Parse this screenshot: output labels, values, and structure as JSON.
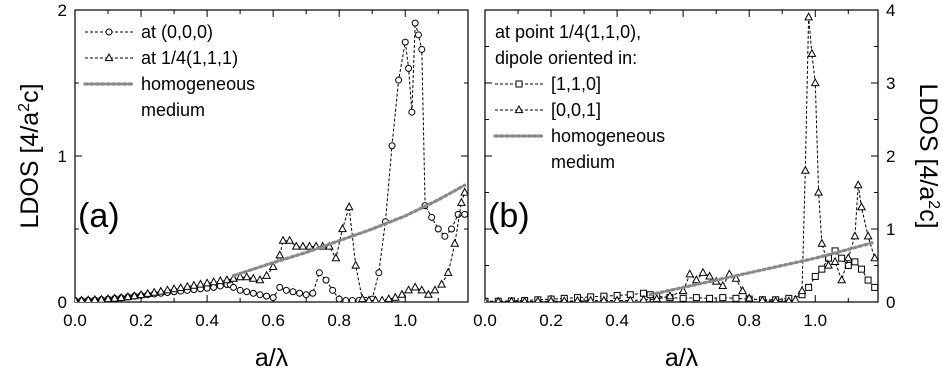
{
  "chart_data": [
    {
      "type": "line",
      "panel_label": "(a)",
      "xlabel": "a/λ",
      "ylabel_main": "LDOS [4/a",
      "ylabel_sup": "2",
      "ylabel_tail": "c]",
      "xlim": [
        0.0,
        1.19
      ],
      "ylim": [
        0,
        2
      ],
      "xticks": [
        "0.0",
        "0.2",
        "0.4",
        "0.6",
        "0.8",
        "1.0"
      ],
      "yticks": [
        "0",
        "1",
        "2"
      ],
      "y_axis_side": "left",
      "grid": false,
      "legend_position": "top-left",
      "legend_header": [],
      "series": [
        {
          "name": "at (0,0,0)",
          "marker": "circle",
          "style": "dashed",
          "color": "#000000",
          "x": [
            0.0,
            0.02,
            0.04,
            0.06,
            0.08,
            0.1,
            0.12,
            0.14,
            0.16,
            0.18,
            0.2,
            0.22,
            0.24,
            0.26,
            0.28,
            0.3,
            0.32,
            0.34,
            0.36,
            0.38,
            0.4,
            0.42,
            0.44,
            0.46,
            0.47,
            0.48,
            0.5,
            0.52,
            0.54,
            0.56,
            0.58,
            0.6,
            0.62,
            0.64,
            0.66,
            0.68,
            0.7,
            0.72,
            0.74,
            0.76,
            0.78,
            0.8,
            0.82,
            0.84,
            0.86,
            0.88,
            0.9,
            0.92,
            0.94,
            0.96,
            0.98,
            1.0,
            1.01,
            1.02,
            1.03,
            1.04,
            1.05,
            1.06,
            1.08,
            1.1,
            1.12,
            1.14,
            1.16,
            1.18
          ],
          "y": [
            0.01,
            0.01,
            0.012,
            0.014,
            0.016,
            0.02,
            0.024,
            0.028,
            0.034,
            0.04,
            0.045,
            0.05,
            0.055,
            0.06,
            0.065,
            0.07,
            0.075,
            0.08,
            0.085,
            0.09,
            0.095,
            0.1,
            0.11,
            0.12,
            0.12,
            0.1,
            0.08,
            0.07,
            0.06,
            0.05,
            0.04,
            0.03,
            0.1,
            0.08,
            0.07,
            0.06,
            0.05,
            0.06,
            0.2,
            0.15,
            0.08,
            0.02,
            0.01,
            0.01,
            0.01,
            0.01,
            0.02,
            0.2,
            0.55,
            1.07,
            1.52,
            1.78,
            1.6,
            1.3,
            1.91,
            1.83,
            1.73,
            0.66,
            0.58,
            0.5,
            0.45,
            0.5,
            0.6,
            0.6
          ]
        },
        {
          "name": "at 1/4(1,1,1)",
          "marker": "triangle",
          "style": "dashed",
          "color": "#000000",
          "x": [
            0.0,
            0.02,
            0.04,
            0.06,
            0.08,
            0.1,
            0.12,
            0.14,
            0.16,
            0.18,
            0.2,
            0.22,
            0.24,
            0.26,
            0.28,
            0.3,
            0.32,
            0.34,
            0.36,
            0.38,
            0.4,
            0.42,
            0.44,
            0.46,
            0.48,
            0.5,
            0.52,
            0.54,
            0.56,
            0.58,
            0.6,
            0.62,
            0.63,
            0.65,
            0.67,
            0.69,
            0.71,
            0.73,
            0.75,
            0.77,
            0.79,
            0.81,
            0.83,
            0.85,
            0.87,
            0.89,
            0.91,
            0.93,
            0.95,
            0.97,
            0.99,
            1.01,
            1.03,
            1.05,
            1.07,
            1.09,
            1.11,
            1.13,
            1.15,
            1.17,
            1.18
          ],
          "y": [
            0.01,
            0.01,
            0.012,
            0.014,
            0.016,
            0.02,
            0.024,
            0.028,
            0.034,
            0.04,
            0.048,
            0.056,
            0.064,
            0.072,
            0.08,
            0.088,
            0.096,
            0.104,
            0.112,
            0.12,
            0.128,
            0.136,
            0.144,
            0.15,
            0.16,
            0.17,
            0.17,
            0.16,
            0.15,
            0.18,
            0.24,
            0.32,
            0.42,
            0.42,
            0.38,
            0.38,
            0.38,
            0.38,
            0.38,
            0.38,
            0.3,
            0.5,
            0.65,
            0.25,
            0.02,
            0.01,
            0.01,
            0.01,
            0.02,
            0.03,
            0.05,
            0.08,
            0.1,
            0.08,
            0.05,
            0.08,
            0.12,
            0.2,
            0.4,
            0.68,
            0.75
          ]
        },
        {
          "name": "homogeneous medium",
          "legend_lines": [
            "homogeneous",
            "medium"
          ],
          "marker": "none",
          "style": "dotted",
          "color": "#888888",
          "x": [
            0.48,
            0.6,
            0.7,
            0.8,
            0.9,
            1.0,
            1.1,
            1.18
          ],
          "y": [
            0.18,
            0.27,
            0.34,
            0.42,
            0.5,
            0.59,
            0.7,
            0.8
          ]
        }
      ]
    },
    {
      "type": "line",
      "panel_label": "(b)",
      "xlabel": "a/λ",
      "ylabel_main": "LDOS [4/a",
      "ylabel_sup": "2",
      "ylabel_tail": "c]",
      "xlim": [
        0.0,
        1.19
      ],
      "ylim": [
        0,
        4
      ],
      "xticks": [
        "0.0",
        "0.2",
        "0.4",
        "0.6",
        "0.8",
        "1.0"
      ],
      "yticks": [
        "0",
        "1",
        "2",
        "3",
        "4"
      ],
      "y_axis_side": "right",
      "grid": false,
      "legend_position": "top-left",
      "legend_header": [
        "at point 1/4(1,1,0),",
        "dipole oriented in:"
      ],
      "series": [
        {
          "name": "[1,1,0]",
          "marker": "square",
          "style": "dashed",
          "color": "#000000",
          "x": [
            0.0,
            0.04,
            0.08,
            0.12,
            0.16,
            0.2,
            0.24,
            0.28,
            0.32,
            0.36,
            0.4,
            0.44,
            0.48,
            0.5,
            0.52,
            0.56,
            0.6,
            0.64,
            0.68,
            0.72,
            0.76,
            0.8,
            0.84,
            0.88,
            0.92,
            0.96,
            0.98,
            1.0,
            1.02,
            1.04,
            1.06,
            1.08,
            1.1,
            1.12,
            1.14,
            1.16,
            1.18
          ],
          "y": [
            0.01,
            0.01,
            0.015,
            0.02,
            0.03,
            0.04,
            0.05,
            0.06,
            0.07,
            0.08,
            0.09,
            0.1,
            0.12,
            0.1,
            0.08,
            0.06,
            0.05,
            0.06,
            0.05,
            0.06,
            0.05,
            0.04,
            0.03,
            0.03,
            0.05,
            0.1,
            0.2,
            0.35,
            0.45,
            0.6,
            0.7,
            0.6,
            0.5,
            0.55,
            0.45,
            0.3,
            0.2
          ]
        },
        {
          "name": "[0,0,1]",
          "marker": "triangle",
          "style": "dashed",
          "color": "#000000",
          "x": [
            0.0,
            0.04,
            0.08,
            0.12,
            0.16,
            0.2,
            0.24,
            0.28,
            0.32,
            0.36,
            0.4,
            0.44,
            0.48,
            0.52,
            0.56,
            0.6,
            0.62,
            0.64,
            0.66,
            0.68,
            0.7,
            0.72,
            0.74,
            0.76,
            0.78,
            0.8,
            0.84,
            0.88,
            0.92,
            0.94,
            0.96,
            0.97,
            0.98,
            0.99,
            1.0,
            1.01,
            1.02,
            1.04,
            1.06,
            1.08,
            1.1,
            1.12,
            1.13,
            1.14,
            1.16,
            1.18
          ],
          "y": [
            0.005,
            0.005,
            0.005,
            0.005,
            0.008,
            0.01,
            0.012,
            0.015,
            0.018,
            0.02,
            0.02,
            0.02,
            0.03,
            0.04,
            0.08,
            0.15,
            0.38,
            0.3,
            0.4,
            0.35,
            0.28,
            0.22,
            0.38,
            0.32,
            0.15,
            0.05,
            0.02,
            0.01,
            0.01,
            0.03,
            0.15,
            1.8,
            3.9,
            3.4,
            3.0,
            1.5,
            0.8,
            0.5,
            0.55,
            0.3,
            0.6,
            0.9,
            1.6,
            1.3,
            0.9,
            0.6
          ]
        },
        {
          "name": "homogeneous medium",
          "legend_lines": [
            "homogeneous",
            "medium"
          ],
          "marker": "none",
          "style": "dotted",
          "color": "#888888",
          "x": [
            0.5,
            0.6,
            0.7,
            0.8,
            0.9,
            1.0,
            1.1,
            1.18
          ],
          "y": [
            0.1,
            0.2,
            0.3,
            0.4,
            0.5,
            0.6,
            0.72,
            0.82
          ]
        }
      ]
    }
  ]
}
